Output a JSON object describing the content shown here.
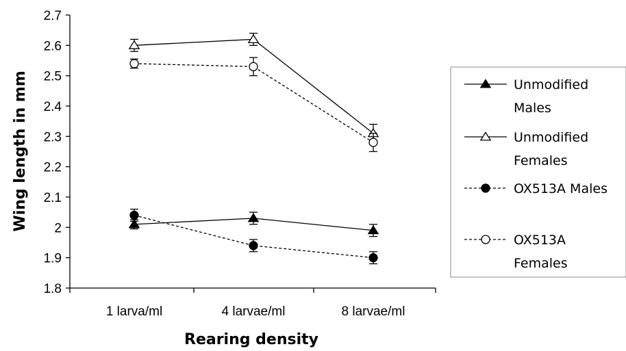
{
  "chart_data": {
    "type": "line",
    "xlabel": "Rearing density",
    "ylabel": "Wing length in mm",
    "categories": [
      "1 larva/ml",
      "4 larvae/ml",
      "8 larvae/ml"
    ],
    "ylim": [
      1.8,
      2.7
    ],
    "yticks": [
      1.8,
      1.9,
      2,
      2.1,
      2.2,
      2.3,
      2.4,
      2.5,
      2.6,
      2.7
    ],
    "ytick_labels": [
      "1.8",
      "1.9",
      "2",
      "2.1",
      "2.2",
      "2.3",
      "2.4",
      "2.5",
      "2.6",
      "2.7"
    ],
    "grid": false,
    "legend_position": "right",
    "series": [
      {
        "name": "Unmodified Males",
        "legend_lines": [
          "Unmodified",
          "Males"
        ],
        "values": [
          2.01,
          2.03,
          1.99
        ],
        "errors": [
          0.015,
          0.02,
          0.02
        ],
        "marker": "triangle",
        "filled": true,
        "line": "solid"
      },
      {
        "name": "Unmodified Females",
        "legend_lines": [
          "Unmodified",
          "Females"
        ],
        "values": [
          2.6,
          2.62,
          2.31
        ],
        "errors": [
          0.02,
          0.02,
          0.03
        ],
        "marker": "triangle",
        "filled": false,
        "line": "solid"
      },
      {
        "name": "OX513A Males",
        "legend_lines": [
          "OX513A Males"
        ],
        "values": [
          2.04,
          1.94,
          1.9
        ],
        "errors": [
          0.02,
          0.02,
          0.02
        ],
        "marker": "circle",
        "filled": true,
        "line": "dashed"
      },
      {
        "name": "OX513A Females",
        "legend_lines": [
          "OX513A",
          "Females"
        ],
        "values": [
          2.54,
          2.53,
          2.28
        ],
        "errors": [
          0.015,
          0.03,
          0.03
        ],
        "marker": "circle",
        "filled": false,
        "line": "dashed"
      }
    ]
  }
}
